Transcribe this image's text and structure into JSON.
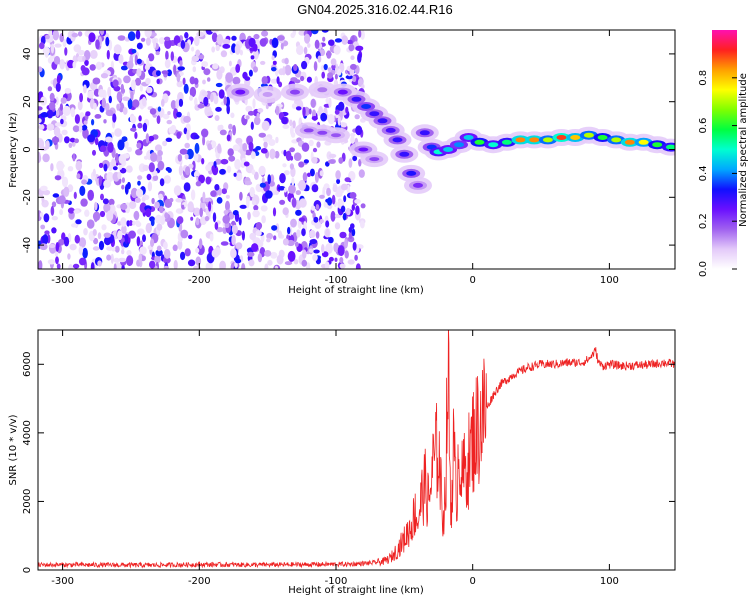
{
  "title": "GN04.2025.316.02.44.R16",
  "chart_data": [
    {
      "type": "heatmap",
      "xlabel": "Height of straight line (km)",
      "ylabel": "Frequency (Hz)",
      "xlim": [
        -318,
        148
      ],
      "ylim": [
        -50,
        50
      ],
      "xticks": [
        -300,
        -200,
        -100,
        0,
        100
      ],
      "yticks": [
        -40,
        -20,
        0,
        20,
        40
      ],
      "colorbar": {
        "label": "Normalized spectral amplitude",
        "range": [
          0,
          1
        ],
        "ticks": [
          0.0,
          0.2,
          0.4,
          0.6,
          0.8
        ],
        "colormap": [
          "#ffffff",
          "#e3c9f9",
          "#a061ef",
          "#6a10ff",
          "#1010ff",
          "#00a8ff",
          "#00ffd0",
          "#00ff40",
          "#80ff00",
          "#ffff00",
          "#ffa000",
          "#ff2020",
          "#ff10b0"
        ]
      },
      "noise_region_x": [
        -318,
        -80
      ],
      "trace": [
        {
          "x": -170,
          "y": 24,
          "a": 0.25
        },
        {
          "x": -150,
          "y": 23,
          "a": 0.12
        },
        {
          "x": -130,
          "y": 24,
          "a": 0.2
        },
        {
          "x": -110,
          "y": 25,
          "a": 0.15
        },
        {
          "x": -95,
          "y": 24,
          "a": 0.25
        },
        {
          "x": -85,
          "y": 21,
          "a": 0.3
        },
        {
          "x": -78,
          "y": 18,
          "a": 0.35
        },
        {
          "x": -72,
          "y": 15,
          "a": 0.3
        },
        {
          "x": -66,
          "y": 12,
          "a": 0.3
        },
        {
          "x": -60,
          "y": 8,
          "a": 0.28
        },
        {
          "x": -55,
          "y": 4,
          "a": 0.3
        },
        {
          "x": -50,
          "y": -2,
          "a": 0.3
        },
        {
          "x": -45,
          "y": -10,
          "a": 0.32
        },
        {
          "x": -40,
          "y": -15,
          "a": 0.22
        },
        {
          "x": -35,
          "y": 7,
          "a": 0.3
        },
        {
          "x": -30,
          "y": 1,
          "a": 0.35
        },
        {
          "x": -25,
          "y": -1,
          "a": 0.5
        },
        {
          "x": -18,
          "y": 0,
          "a": 0.45
        },
        {
          "x": -10,
          "y": 2,
          "a": 0.4
        },
        {
          "x": -3,
          "y": 5,
          "a": 0.45
        },
        {
          "x": 5,
          "y": 3,
          "a": 0.6
        },
        {
          "x": 15,
          "y": 2,
          "a": 0.5
        },
        {
          "x": 25,
          "y": 3,
          "a": 0.55
        },
        {
          "x": 35,
          "y": 4,
          "a": 0.85
        },
        {
          "x": 45,
          "y": 4,
          "a": 0.85
        },
        {
          "x": 55,
          "y": 4,
          "a": 0.7
        },
        {
          "x": 65,
          "y": 5,
          "a": 0.9
        },
        {
          "x": 75,
          "y": 5,
          "a": 0.8
        },
        {
          "x": 85,
          "y": 6,
          "a": 0.7
        },
        {
          "x": 95,
          "y": 5,
          "a": 0.6
        },
        {
          "x": 105,
          "y": 4,
          "a": 0.7
        },
        {
          "x": 115,
          "y": 3,
          "a": 0.85
        },
        {
          "x": 125,
          "y": 3,
          "a": 0.75
        },
        {
          "x": 135,
          "y": 2,
          "a": 0.6
        },
        {
          "x": 145,
          "y": 1,
          "a": 0.55
        }
      ],
      "secondary_trace": [
        {
          "x": -120,
          "y": 8,
          "a": 0.2
        },
        {
          "x": -110,
          "y": 7,
          "a": 0.2
        },
        {
          "x": -100,
          "y": 6,
          "a": 0.18
        },
        {
          "x": -80,
          "y": 0,
          "a": 0.25
        },
        {
          "x": -72,
          "y": -4,
          "a": 0.2
        }
      ]
    },
    {
      "type": "line",
      "xlabel": "Height of straight line (km)",
      "ylabel": "SNR (10 * v/v)",
      "xlim": [
        -318,
        148
      ],
      "ylim": [
        0,
        7000
      ],
      "xticks": [
        -300,
        -200,
        -100,
        0,
        100
      ],
      "yticks": [
        0,
        2000,
        4000,
        6000
      ],
      "series": [
        {
          "color": "#ee2222",
          "x": [
            -318,
            -280,
            -240,
            -200,
            -160,
            -120,
            -90,
            -75,
            -65,
            -60,
            -55,
            -50,
            -45,
            -42,
            -40,
            -38,
            -35,
            -32,
            -30,
            -28,
            -25,
            -22,
            -20,
            -18,
            -16,
            -14,
            -12,
            -10,
            -8,
            -5,
            -2,
            0,
            5,
            10,
            15,
            20,
            30,
            40,
            50,
            60,
            70,
            80,
            85,
            90,
            92,
            95,
            100,
            110,
            120,
            130,
            140,
            148
          ],
          "y": [
            150,
            150,
            140,
            160,
            150,
            160,
            170,
            200,
            250,
            350,
            600,
            900,
            1300,
            1700,
            1400,
            2000,
            2500,
            1900,
            2800,
            3200,
            3600,
            1500,
            2200,
            6000,
            1600,
            3600,
            2000,
            3800,
            2600,
            3000,
            3300,
            3800,
            4300,
            4700,
            5100,
            5400,
            5700,
            5900,
            6000,
            6000,
            6050,
            6050,
            6150,
            6400,
            6050,
            5950,
            6000,
            5950,
            5970,
            5990,
            6050,
            6000
          ]
        }
      ]
    }
  ]
}
